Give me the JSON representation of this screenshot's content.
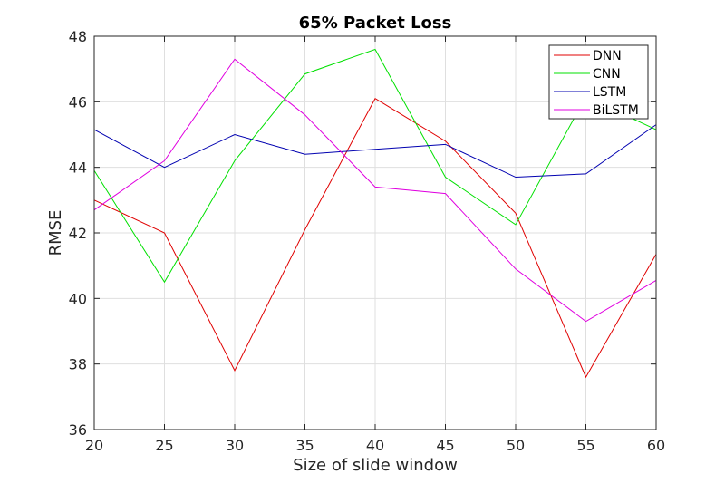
{
  "chart_data": {
    "type": "line",
    "title": "65% Packet Loss",
    "xlabel": "Size of slide window",
    "ylabel": "RMSE",
    "x": [
      20,
      25,
      30,
      35,
      40,
      45,
      50,
      55,
      60
    ],
    "xlim": [
      20,
      60
    ],
    "ylim": [
      36,
      48
    ],
    "xticks": [
      20,
      25,
      30,
      35,
      40,
      45,
      50,
      55,
      60
    ],
    "yticks": [
      36,
      38,
      40,
      42,
      44,
      46,
      48
    ],
    "grid": true,
    "legend_position": "top-right",
    "series": [
      {
        "name": "DNN",
        "color": "#e00000",
        "values": [
          43.0,
          42.0,
          37.8,
          42.1,
          46.1,
          44.8,
          42.6,
          37.6,
          41.35
        ]
      },
      {
        "name": "CNN",
        "color": "#00e000",
        "values": [
          43.9,
          40.5,
          44.2,
          46.85,
          47.6,
          43.7,
          42.25,
          46.15,
          45.15
        ]
      },
      {
        "name": "LSTM",
        "color": "#0000b0",
        "values": [
          45.15,
          44.0,
          45.0,
          44.4,
          44.55,
          44.7,
          43.7,
          43.8,
          45.3
        ]
      },
      {
        "name": "BiLSTM",
        "color": "#e000e0",
        "values": [
          42.7,
          44.2,
          47.3,
          45.6,
          43.4,
          43.2,
          40.9,
          39.3,
          40.55
        ]
      }
    ]
  }
}
